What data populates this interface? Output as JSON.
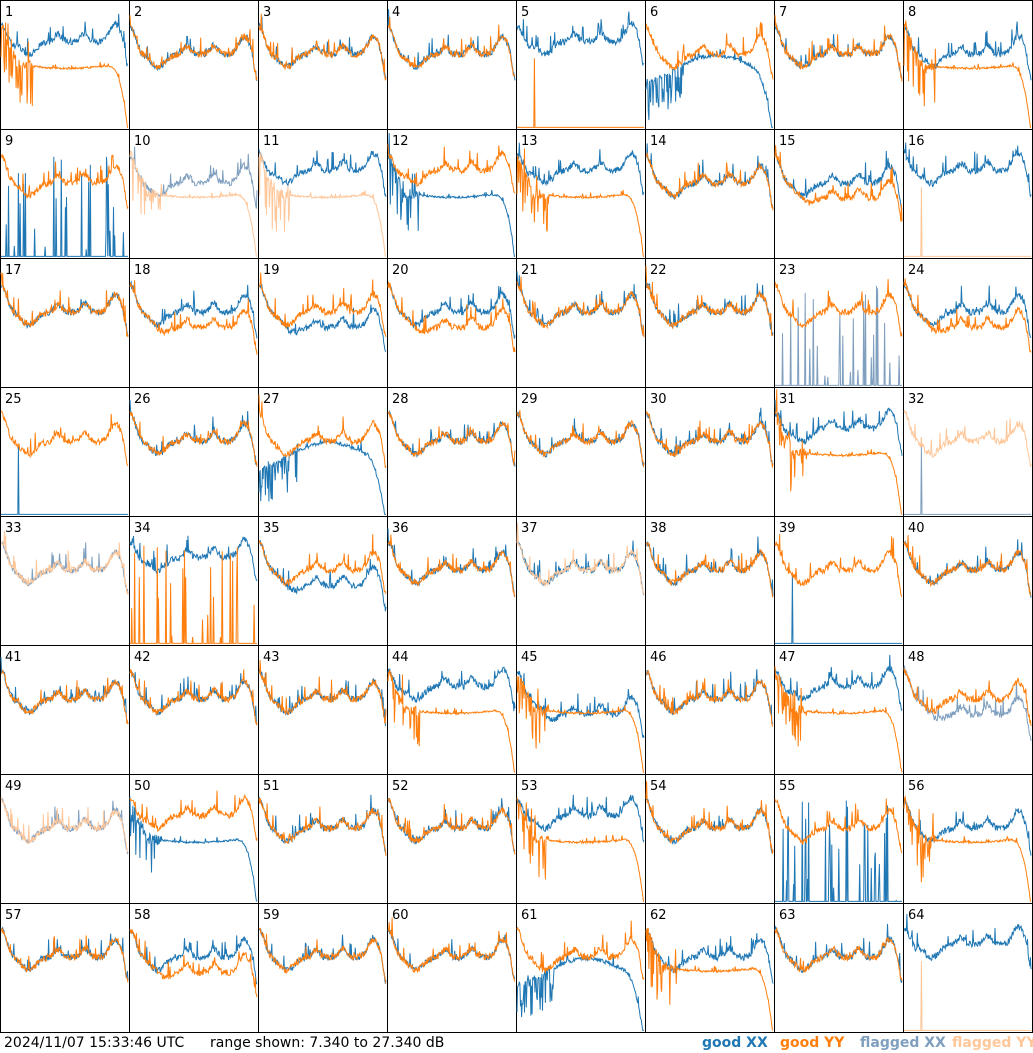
{
  "chart_data": {
    "type": "line",
    "title": "",
    "grid": {
      "rows": 8,
      "cols": 8
    },
    "ylim_db": [
      7.34,
      27.34
    ],
    "colors": {
      "good_xx": "#1f77b4",
      "good_yy": "#ff7f0e",
      "flagged_xx": "#7f9fbf",
      "flagged_yy": "#ffc79a"
    },
    "panels": [
      {
        "label": "1",
        "xx": {
          "status": "good",
          "shape": "up"
        },
        "yy": {
          "status": "good",
          "shape": "falloff"
        }
      },
      {
        "label": "2",
        "xx": {
          "status": "good",
          "shape": "normal"
        },
        "yy": {
          "status": "good",
          "shape": "normal"
        }
      },
      {
        "label": "3",
        "xx": {
          "status": "good",
          "shape": "normal"
        },
        "yy": {
          "status": "good",
          "shape": "normal"
        }
      },
      {
        "label": "4",
        "xx": {
          "status": "good",
          "shape": "normal"
        },
        "yy": {
          "status": "good",
          "shape": "normal"
        }
      },
      {
        "label": "5",
        "xx": {
          "status": "good",
          "shape": "up"
        },
        "yy": {
          "status": "good",
          "shape": "dead"
        }
      },
      {
        "label": "6",
        "xx": {
          "status": "good",
          "shape": "wave"
        },
        "yy": {
          "status": "good",
          "shape": "normal"
        }
      },
      {
        "label": "7",
        "xx": {
          "status": "good",
          "shape": "normal"
        },
        "yy": {
          "status": "good",
          "shape": "normal"
        }
      },
      {
        "label": "8",
        "xx": {
          "status": "good",
          "shape": "normal"
        },
        "yy": {
          "status": "good",
          "shape": "falloff"
        }
      },
      {
        "label": "9",
        "xx": {
          "status": "good",
          "shape": "spikes"
        },
        "yy": {
          "status": "good",
          "shape": "normal"
        }
      },
      {
        "label": "10",
        "xx": {
          "status": "flagged",
          "shape": "normal"
        },
        "yy": {
          "status": "flagged",
          "shape": "falloff"
        }
      },
      {
        "label": "11",
        "xx": {
          "status": "good",
          "shape": "up"
        },
        "yy": {
          "status": "flagged",
          "shape": "falloff"
        }
      },
      {
        "label": "12",
        "xx": {
          "status": "good",
          "shape": "falloff"
        },
        "yy": {
          "status": "good",
          "shape": "up"
        }
      },
      {
        "label": "13",
        "xx": {
          "status": "good",
          "shape": "up"
        },
        "yy": {
          "status": "good",
          "shape": "falloff"
        }
      },
      {
        "label": "14",
        "xx": {
          "status": "good",
          "shape": "normal"
        },
        "yy": {
          "status": "good",
          "shape": "normal"
        }
      },
      {
        "label": "15",
        "xx": {
          "status": "good",
          "shape": "normal"
        },
        "yy": {
          "status": "good",
          "shape": "down"
        }
      },
      {
        "label": "16",
        "xx": {
          "status": "good",
          "shape": "up"
        },
        "yy": {
          "status": "flagged",
          "shape": "dead"
        }
      },
      {
        "label": "17",
        "xx": {
          "status": "good",
          "shape": "normal"
        },
        "yy": {
          "status": "good",
          "shape": "normal"
        }
      },
      {
        "label": "18",
        "xx": {
          "status": "good",
          "shape": "normal"
        },
        "yy": {
          "status": "good",
          "shape": "down"
        }
      },
      {
        "label": "19",
        "xx": {
          "status": "good",
          "shape": "down"
        },
        "yy": {
          "status": "good",
          "shape": "normal"
        }
      },
      {
        "label": "20",
        "xx": {
          "status": "good",
          "shape": "normal"
        },
        "yy": {
          "status": "good",
          "shape": "down"
        }
      },
      {
        "label": "21",
        "xx": {
          "status": "good",
          "shape": "normal"
        },
        "yy": {
          "status": "good",
          "shape": "normal"
        }
      },
      {
        "label": "22",
        "xx": {
          "status": "good",
          "shape": "normal"
        },
        "yy": {
          "status": "good",
          "shape": "normal"
        }
      },
      {
        "label": "23",
        "xx": {
          "status": "flagged",
          "shape": "spikes"
        },
        "yy": {
          "status": "good",
          "shape": "normal"
        }
      },
      {
        "label": "24",
        "xx": {
          "status": "good",
          "shape": "normal"
        },
        "yy": {
          "status": "good",
          "shape": "down"
        }
      },
      {
        "label": "25",
        "xx": {
          "status": "good",
          "shape": "dead"
        },
        "yy": {
          "status": "good",
          "shape": "normal"
        }
      },
      {
        "label": "26",
        "xx": {
          "status": "good",
          "shape": "normal"
        },
        "yy": {
          "status": "good",
          "shape": "normal"
        }
      },
      {
        "label": "27",
        "xx": {
          "status": "good",
          "shape": "wave"
        },
        "yy": {
          "status": "good",
          "shape": "normal"
        }
      },
      {
        "label": "28",
        "xx": {
          "status": "good",
          "shape": "normal"
        },
        "yy": {
          "status": "good",
          "shape": "normal"
        }
      },
      {
        "label": "29",
        "xx": {
          "status": "good",
          "shape": "normal"
        },
        "yy": {
          "status": "good",
          "shape": "normal"
        }
      },
      {
        "label": "30",
        "xx": {
          "status": "good",
          "shape": "normal"
        },
        "yy": {
          "status": "good",
          "shape": "normal"
        }
      },
      {
        "label": "31",
        "xx": {
          "status": "good",
          "shape": "up"
        },
        "yy": {
          "status": "good",
          "shape": "falloff"
        }
      },
      {
        "label": "32",
        "xx": {
          "status": "flagged",
          "shape": "dead"
        },
        "yy": {
          "status": "flagged",
          "shape": "normal"
        }
      },
      {
        "label": "33",
        "xx": {
          "status": "flagged",
          "shape": "normal"
        },
        "yy": {
          "status": "flagged",
          "shape": "normal"
        }
      },
      {
        "label": "34",
        "xx": {
          "status": "good",
          "shape": "up"
        },
        "yy": {
          "status": "good",
          "shape": "spikes"
        }
      },
      {
        "label": "35",
        "xx": {
          "status": "good",
          "shape": "down"
        },
        "yy": {
          "status": "good",
          "shape": "normal"
        }
      },
      {
        "label": "36",
        "xx": {
          "status": "good",
          "shape": "normal"
        },
        "yy": {
          "status": "good",
          "shape": "normal"
        }
      },
      {
        "label": "37",
        "xx": {
          "status": "good",
          "shape": "normal"
        },
        "yy": {
          "status": "flagged",
          "shape": "normal"
        }
      },
      {
        "label": "38",
        "xx": {
          "status": "good",
          "shape": "normal"
        },
        "yy": {
          "status": "good",
          "shape": "normal"
        }
      },
      {
        "label": "39",
        "xx": {
          "status": "good",
          "shape": "dead"
        },
        "yy": {
          "status": "good",
          "shape": "normal"
        }
      },
      {
        "label": "40",
        "xx": {
          "status": "good",
          "shape": "normal"
        },
        "yy": {
          "status": "good",
          "shape": "normal"
        }
      },
      {
        "label": "41",
        "xx": {
          "status": "good",
          "shape": "normal"
        },
        "yy": {
          "status": "good",
          "shape": "normal"
        }
      },
      {
        "label": "42",
        "xx": {
          "status": "good",
          "shape": "normal"
        },
        "yy": {
          "status": "good",
          "shape": "normal"
        }
      },
      {
        "label": "43",
        "xx": {
          "status": "good",
          "shape": "normal"
        },
        "yy": {
          "status": "good",
          "shape": "normal"
        }
      },
      {
        "label": "44",
        "xx": {
          "status": "good",
          "shape": "up"
        },
        "yy": {
          "status": "good",
          "shape": "falloff"
        }
      },
      {
        "label": "45",
        "xx": {
          "status": "good",
          "shape": "down"
        },
        "yy": {
          "status": "good",
          "shape": "falloff"
        }
      },
      {
        "label": "46",
        "xx": {
          "status": "good",
          "shape": "normal"
        },
        "yy": {
          "status": "good",
          "shape": "normal"
        }
      },
      {
        "label": "47",
        "xx": {
          "status": "good",
          "shape": "up"
        },
        "yy": {
          "status": "good",
          "shape": "falloff"
        }
      },
      {
        "label": "48",
        "xx": {
          "status": "flagged",
          "shape": "down"
        },
        "yy": {
          "status": "good",
          "shape": "normal"
        }
      },
      {
        "label": "49",
        "xx": {
          "status": "flagged",
          "shape": "normal"
        },
        "yy": {
          "status": "flagged",
          "shape": "normal"
        }
      },
      {
        "label": "50",
        "xx": {
          "status": "good",
          "shape": "falloff"
        },
        "yy": {
          "status": "good",
          "shape": "up"
        }
      },
      {
        "label": "51",
        "xx": {
          "status": "good",
          "shape": "normal"
        },
        "yy": {
          "status": "good",
          "shape": "normal"
        }
      },
      {
        "label": "52",
        "xx": {
          "status": "good",
          "shape": "normal"
        },
        "yy": {
          "status": "good",
          "shape": "normal"
        }
      },
      {
        "label": "53",
        "xx": {
          "status": "good",
          "shape": "up"
        },
        "yy": {
          "status": "good",
          "shape": "falloff"
        }
      },
      {
        "label": "54",
        "xx": {
          "status": "good",
          "shape": "normal"
        },
        "yy": {
          "status": "good",
          "shape": "normal"
        }
      },
      {
        "label": "55",
        "xx": {
          "status": "good",
          "shape": "spikes"
        },
        "yy": {
          "status": "good",
          "shape": "normal"
        }
      },
      {
        "label": "56",
        "xx": {
          "status": "good",
          "shape": "normal"
        },
        "yy": {
          "status": "good",
          "shape": "falloff"
        }
      },
      {
        "label": "57",
        "xx": {
          "status": "good",
          "shape": "normal"
        },
        "yy": {
          "status": "good",
          "shape": "normal"
        }
      },
      {
        "label": "58",
        "xx": {
          "status": "good",
          "shape": "normal"
        },
        "yy": {
          "status": "good",
          "shape": "down"
        }
      },
      {
        "label": "59",
        "xx": {
          "status": "good",
          "shape": "normal"
        },
        "yy": {
          "status": "good",
          "shape": "normal"
        }
      },
      {
        "label": "60",
        "xx": {
          "status": "good",
          "shape": "normal"
        },
        "yy": {
          "status": "good",
          "shape": "normal"
        }
      },
      {
        "label": "61",
        "xx": {
          "status": "good",
          "shape": "wave"
        },
        "yy": {
          "status": "good",
          "shape": "normal"
        }
      },
      {
        "label": "62",
        "xx": {
          "status": "good",
          "shape": "normal"
        },
        "yy": {
          "status": "good",
          "shape": "falloff"
        }
      },
      {
        "label": "63",
        "xx": {
          "status": "good",
          "shape": "normal"
        },
        "yy": {
          "status": "good",
          "shape": "normal"
        }
      },
      {
        "label": "64",
        "xx": {
          "status": "good",
          "shape": "up"
        },
        "yy": {
          "status": "flagged",
          "shape": "dead"
        }
      }
    ]
  },
  "footer": {
    "timestamp": "2024/11/07 15:33:46 UTC",
    "range": "range shown: 7.340 to 27.340 dB"
  },
  "legend": {
    "good_xx": "good XX",
    "good_yy": "good YY",
    "flagged_xx": "flagged XX",
    "flagged_yy": "flagged YY"
  }
}
